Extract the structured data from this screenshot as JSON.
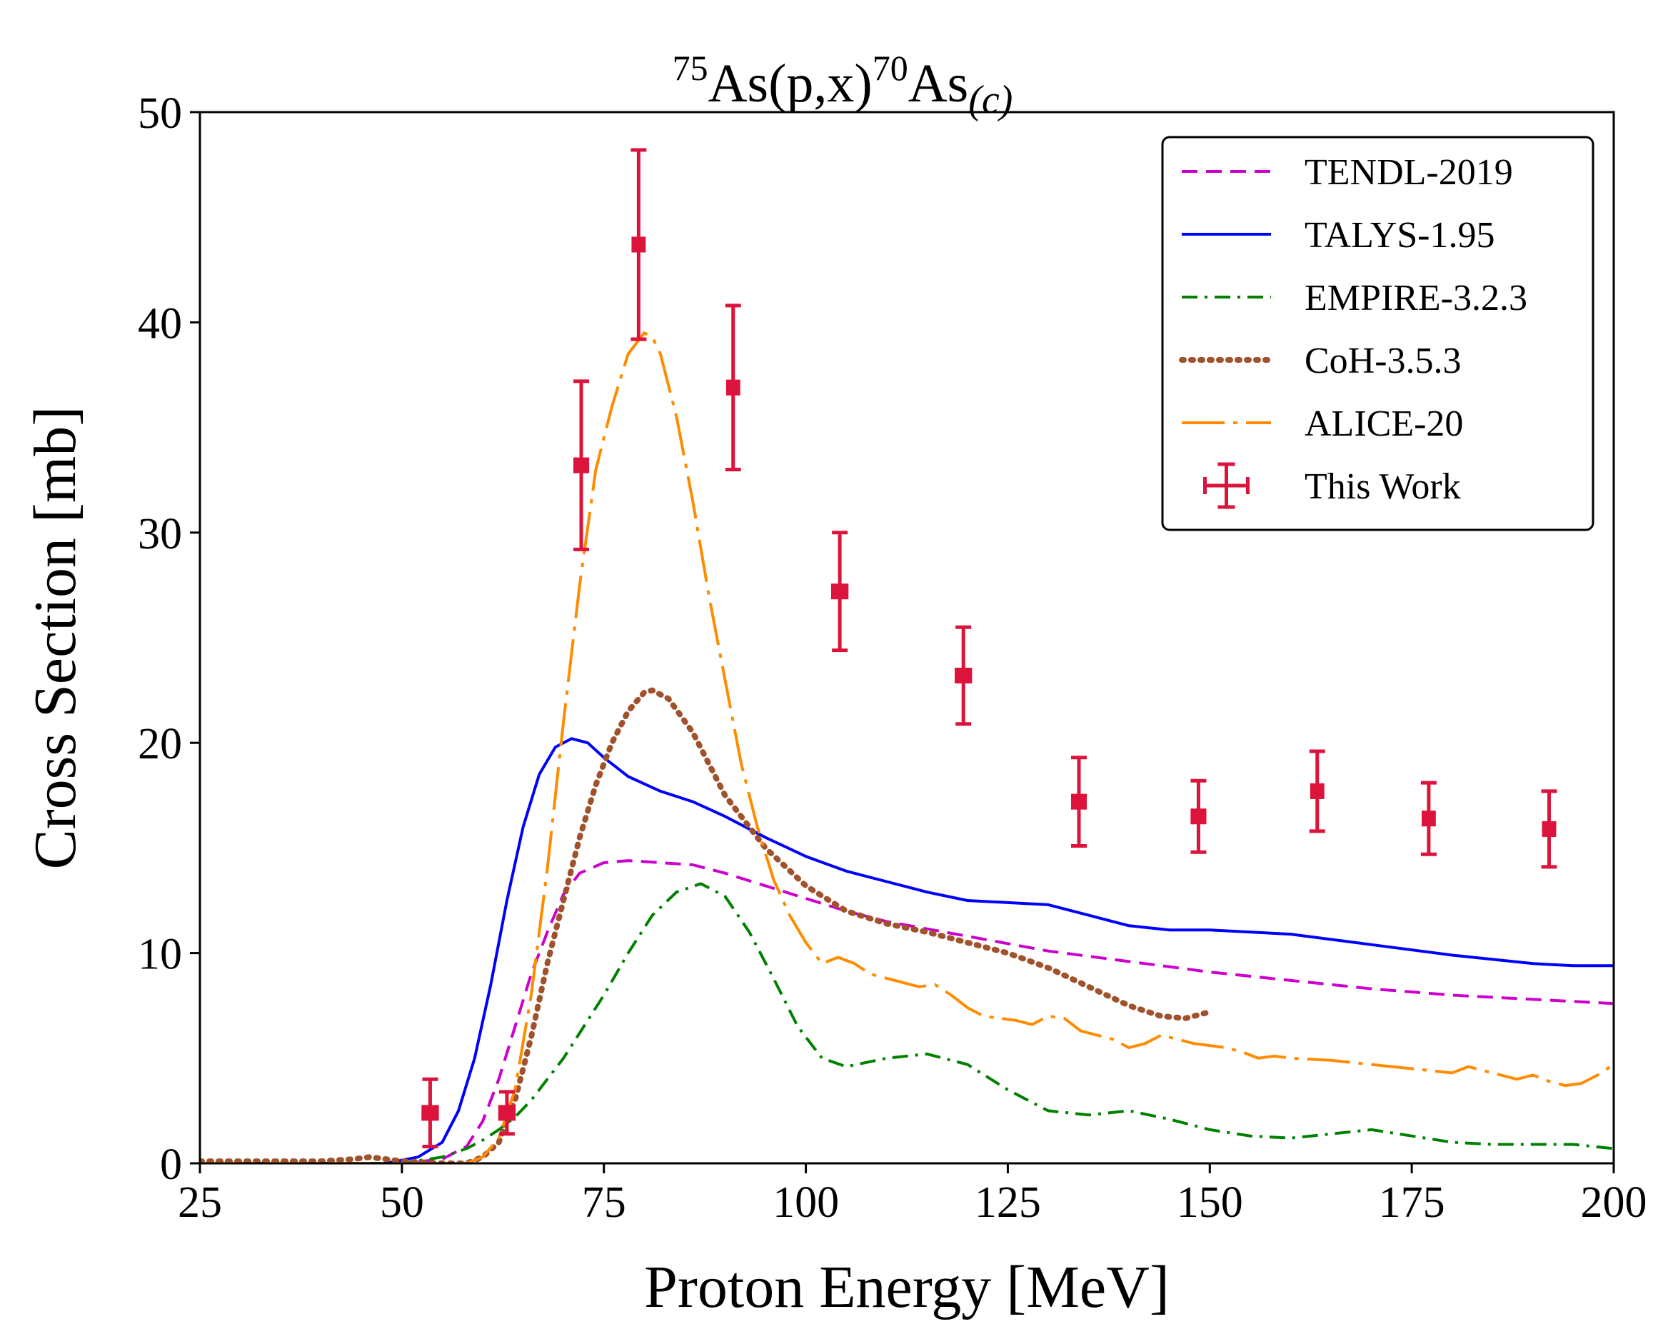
{
  "chart_data": {
    "type": "line",
    "title": {
      "pre_sup": "75",
      "base1": "As(p,x)",
      "mid_sup": "70",
      "base2": "As",
      "sub": "(c)"
    },
    "xlabel": "Proton Energy [MeV]",
    "ylabel": "Cross Section [mb]",
    "xlim": [
      25,
      200
    ],
    "ylim": [
      0,
      50
    ],
    "xticks": [
      25,
      50,
      75,
      100,
      125,
      150,
      175,
      200
    ],
    "yticks": [
      0,
      10,
      20,
      30,
      40,
      50
    ],
    "legend_position": "top-right",
    "series": [
      {
        "name": "TENDL-2019",
        "color": "#cc00cc",
        "style": "dashed",
        "x": [
          25,
          50,
          55,
          58,
          60,
          62,
          64,
          66,
          68,
          70,
          72,
          75,
          78,
          82,
          86,
          90,
          95,
          100,
          105,
          110,
          120,
          130,
          140,
          150,
          160,
          170,
          180,
          190,
          200
        ],
        "y": [
          0,
          0,
          0.2,
          0.8,
          2,
          4,
          6.5,
          9,
          11,
          12.8,
          13.8,
          14.3,
          14.4,
          14.3,
          14.2,
          13.8,
          13.2,
          12.6,
          12.0,
          11.5,
          10.8,
          10.1,
          9.6,
          9.1,
          8.7,
          8.3,
          8.0,
          7.8,
          7.6
        ]
      },
      {
        "name": "TALYS-1.95",
        "color": "#0000ff",
        "style": "solid",
        "x": [
          25,
          48,
          52,
          55,
          57,
          59,
          61,
          63,
          65,
          67,
          69,
          71,
          73,
          75,
          78,
          82,
          86,
          90,
          95,
          100,
          105,
          110,
          115,
          120,
          125,
          130,
          135,
          140,
          145,
          150,
          160,
          170,
          180,
          190,
          195,
          200
        ],
        "y": [
          0,
          0,
          0.3,
          1,
          2.5,
          5,
          8.5,
          12.5,
          16,
          18.5,
          19.8,
          20.2,
          20.0,
          19.3,
          18.4,
          17.7,
          17.2,
          16.5,
          15.5,
          14.6,
          13.9,
          13.4,
          12.9,
          12.5,
          12.4,
          12.3,
          11.8,
          11.3,
          11.1,
          11.1,
          10.9,
          10.4,
          9.9,
          9.5,
          9.4,
          9.4
        ]
      },
      {
        "name": "EMPIRE-3.2.3",
        "color": "#008000",
        "style": "dashdot",
        "x": [
          25,
          50,
          55,
          58,
          60,
          62,
          64,
          66,
          68,
          70,
          72,
          75,
          78,
          81,
          84,
          87,
          90,
          93,
          96,
          99,
          102,
          105,
          110,
          115,
          120,
          125,
          130,
          135,
          140,
          145,
          150,
          155,
          160,
          165,
          170,
          175,
          180,
          185,
          190,
          195,
          200
        ],
        "y": [
          0,
          0,
          0.3,
          0.7,
          1.1,
          1.6,
          2.2,
          3.0,
          4.0,
          5.0,
          6.2,
          8.0,
          10.0,
          11.8,
          12.9,
          13.3,
          12.7,
          11.0,
          8.8,
          6.5,
          5.0,
          4.6,
          5.0,
          5.2,
          4.7,
          3.5,
          2.5,
          2.3,
          2.5,
          2.1,
          1.6,
          1.3,
          1.2,
          1.4,
          1.6,
          1.3,
          1.0,
          0.9,
          0.9,
          0.9,
          0.7
        ]
      },
      {
        "name": "CoH-3.5.3",
        "color": "#a0522d",
        "style": "dotted",
        "x": [
          25,
          40,
          44,
          46,
          48,
          50,
          55,
          58,
          60,
          62,
          64,
          66,
          68,
          70,
          72,
          74,
          76,
          78,
          80,
          81,
          83,
          86,
          90,
          95,
          100,
          105,
          110,
          115,
          120,
          125,
          130,
          135,
          140,
          144,
          147,
          150
        ],
        "y": [
          0.1,
          0.1,
          0.2,
          0.3,
          0.2,
          0.1,
          0,
          0,
          0.3,
          1.0,
          3.0,
          6.0,
          9.5,
          12.5,
          15.5,
          18.0,
          20.0,
          21.5,
          22.4,
          22.5,
          22.1,
          20.5,
          17.5,
          15.0,
          13.2,
          12.0,
          11.4,
          11.0,
          10.5,
          10.0,
          9.3,
          8.4,
          7.5,
          7.0,
          6.9,
          7.2
        ]
      },
      {
        "name": "ALICE-20",
        "color": "#ff8c00",
        "style": "longdash",
        "x": [
          25,
          55,
          58,
          60,
          62,
          64,
          66,
          68,
          70,
          72,
          74,
          76,
          78,
          80,
          81,
          82,
          84,
          86,
          88,
          90,
          92,
          94,
          96,
          98,
          100,
          102,
          104,
          106,
          108,
          110,
          112,
          114,
          116,
          118,
          120,
          122,
          124,
          126,
          128,
          130,
          132,
          134,
          136,
          138,
          140,
          142,
          144,
          146,
          148,
          150,
          152,
          154,
          156,
          158,
          160,
          165,
          170,
          175,
          180,
          182,
          185,
          188,
          190,
          192,
          194,
          196,
          198,
          200
        ],
        "y": [
          0,
          0,
          0,
          0.3,
          1.2,
          3.5,
          8,
          14,
          21,
          27.5,
          33,
          36,
          38.5,
          39.5,
          39.3,
          38.5,
          35.5,
          31.5,
          27.0,
          23.0,
          19.0,
          16.0,
          13.5,
          11.8,
          10.5,
          9.5,
          9.8,
          9.5,
          9.0,
          8.8,
          8.6,
          8.4,
          8.5,
          8.0,
          7.4,
          7.0,
          6.9,
          6.8,
          6.6,
          7.0,
          6.9,
          6.3,
          6.1,
          5.9,
          5.5,
          5.7,
          6.1,
          5.9,
          5.7,
          5.6,
          5.5,
          5.3,
          5.0,
          5.1,
          5.0,
          4.9,
          4.7,
          4.5,
          4.3,
          4.6,
          4.3,
          4.0,
          4.2,
          3.9,
          3.7,
          3.8,
          4.2,
          4.7
        ]
      }
    ],
    "measurements": {
      "name": "This Work",
      "color": "#dc143c",
      "points": [
        {
          "x": 53.5,
          "y": 2.4,
          "yerr": 1.6,
          "xerr": 0.9
        },
        {
          "x": 63.0,
          "y": 2.4,
          "yerr": 1.0,
          "xerr": 0.9
        },
        {
          "x": 72.2,
          "y": 33.2,
          "yerr": 4.0,
          "xerr": 0.8
        },
        {
          "x": 79.3,
          "y": 43.7,
          "yerr": 4.5,
          "xerr": 0.7
        },
        {
          "x": 91.0,
          "y": 36.9,
          "yerr": 3.9,
          "xerr": 0.7
        },
        {
          "x": 104.2,
          "y": 27.2,
          "yerr": 2.8,
          "xerr": 0.9
        },
        {
          "x": 119.5,
          "y": 23.2,
          "yerr": 2.3,
          "xerr": 0.9
        },
        {
          "x": 133.8,
          "y": 17.2,
          "yerr": 2.1,
          "xerr": 0.8
        },
        {
          "x": 148.6,
          "y": 16.5,
          "yerr": 1.7,
          "xerr": 0.8
        },
        {
          "x": 163.3,
          "y": 17.7,
          "yerr": 1.9,
          "xerr": 0.7
        },
        {
          "x": 177.1,
          "y": 16.4,
          "yerr": 1.7,
          "xerr": 0.7
        },
        {
          "x": 192.0,
          "y": 15.9,
          "yerr": 1.8,
          "xerr": 0.7
        }
      ]
    }
  }
}
